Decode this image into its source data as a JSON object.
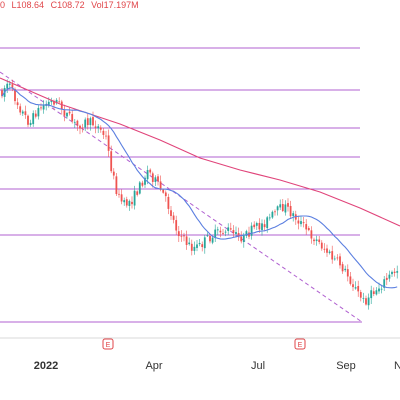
{
  "header": {
    "open_fragment": "0",
    "low": "L108.64",
    "close": "C108.72",
    "volume": "Vol17.197M"
  },
  "colors": {
    "up": "#26a69a",
    "down": "#ef5350",
    "ma_fast": "#5b7fe0",
    "ma_slow": "#e0447a",
    "levels": "#b060d0",
    "trendline": "#b060d0",
    "earnings": "#e0464a"
  },
  "chart_data": {
    "type": "candlestick",
    "x_ticks": [
      "2022",
      "Apr",
      "Jul",
      "Sep",
      "N"
    ],
    "x_tick_bold": [
      true,
      false,
      false,
      false,
      false
    ],
    "earnings_markers": [
      {
        "label": "E",
        "after": "2022"
      },
      {
        "label": "E",
        "after": "Jul"
      }
    ],
    "horizontal_levels": 7,
    "dashed_trendline": true,
    "moving_averages": 2
  }
}
